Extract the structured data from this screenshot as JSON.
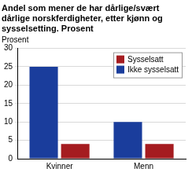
{
  "chart_data": {
    "type": "bar",
    "title": "Andel som mener de har dårlige/svært dårlige norskferdigheter, etter kjønn og sysselsetting. Prosent",
    "ylabel": "Prosent",
    "categories": [
      "Kvinner",
      "Menn"
    ],
    "series": [
      {
        "name": "Sysselsatt",
        "color": "#a51c20",
        "values": [
          4,
          4
        ]
      },
      {
        "name": "Ikke sysselsatt",
        "color": "#1a3d9c",
        "values": [
          25,
          10
        ]
      }
    ],
    "ylim": [
      0,
      30
    ],
    "yticks": [
      0,
      5,
      10,
      15,
      20,
      25,
      30
    ],
    "grid": true,
    "legend": "upper right"
  }
}
